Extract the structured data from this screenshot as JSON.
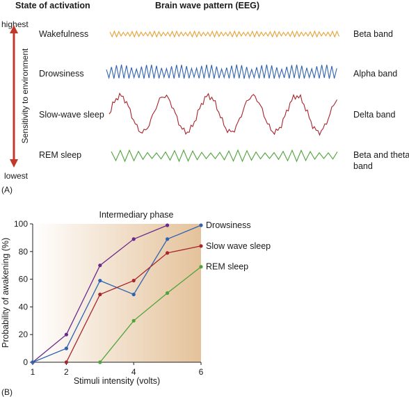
{
  "panel_a": {
    "header_state": "State of activation",
    "header_pattern": "Brain wave pattern (EEG)",
    "axis_top": "highest",
    "axis_bottom": "lowest",
    "axis_label": "Sensitivity to environment",
    "panel_label": "(A)",
    "arrow_color": "#c0392b",
    "rows": [
      {
        "state": "Wakefulness",
        "band": "Beta band",
        "color": "#e8a035"
      },
      {
        "state": "Drowsiness",
        "band": "Alpha band",
        "color": "#2f62b0"
      },
      {
        "state": "Slow-wave sleep",
        "band": "Delta band",
        "color": "#a8232a"
      },
      {
        "state": "REM sleep",
        "band_line1": "Beta and theta",
        "band_line2": "band",
        "color": "#4fa33a"
      }
    ]
  },
  "panel_b": {
    "panel_label": "(B)",
    "shaded_label": "Intermediary phase",
    "chart_data": {
      "type": "line",
      "xlabel": "Stimuli intensity (volts)",
      "ylabel": "Probability of awakening (%)",
      "xlim": [
        1,
        6
      ],
      "ylim": [
        0,
        100
      ],
      "xticks": [
        "1",
        "2",
        "4",
        "6"
      ],
      "yticks": [
        "0",
        "20",
        "40",
        "60",
        "80",
        "100"
      ],
      "series": [
        {
          "color": "#6a2a8a",
          "x": [
            1,
            2,
            3,
            4,
            5
          ],
          "y": [
            0,
            20,
            70,
            89,
            99
          ]
        },
        {
          "name": "Drowsiness",
          "color": "#2f62b0",
          "x": [
            1,
            2,
            3,
            4,
            5,
            6
          ],
          "y": [
            0,
            10,
            59,
            49,
            89,
            99
          ]
        },
        {
          "name": "Slow wave sleep",
          "color": "#a8232a",
          "x": [
            2,
            3,
            4,
            5,
            6
          ],
          "y": [
            0,
            49,
            59,
            79,
            84
          ]
        },
        {
          "name": "REM sleep",
          "color": "#4fa33a",
          "x": [
            3,
            4,
            5,
            6
          ],
          "y": [
            0,
            30,
            50,
            69
          ]
        }
      ]
    }
  }
}
